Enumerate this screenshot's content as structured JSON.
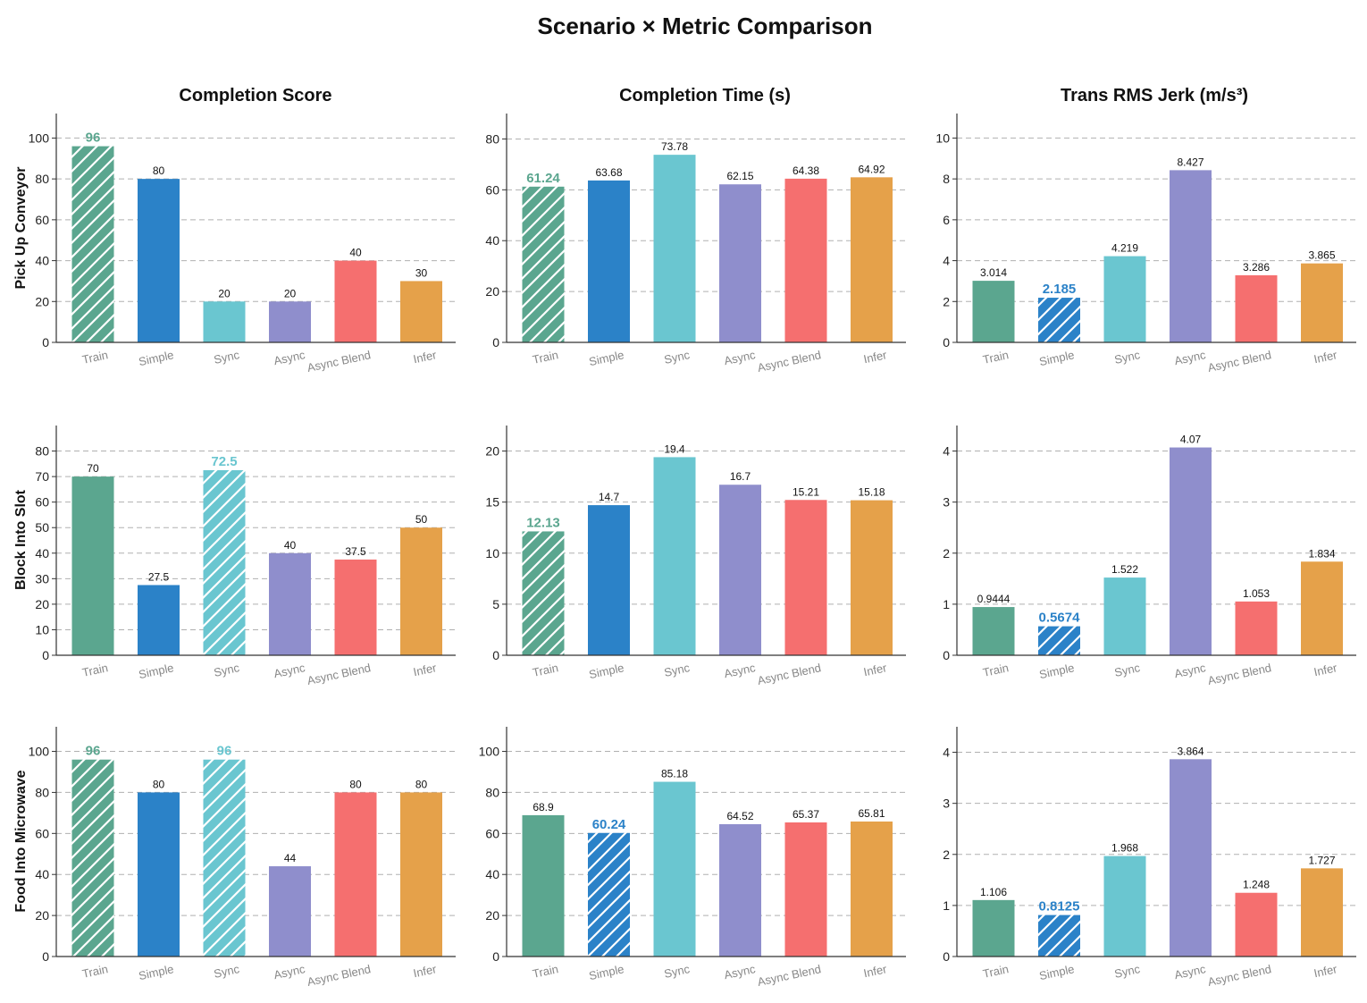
{
  "title": "Scenario × Metric Comparison",
  "categories": [
    "Train",
    "Simple",
    "Sync",
    "Async",
    "Async Blend",
    "Infer"
  ],
  "colors": [
    "#5ba68f",
    "#2b82c8",
    "#6ac6d0",
    "#8f8ecc",
    "#f56f6f",
    "#e5a14a"
  ],
  "columns": [
    "Completion Score",
    "Completion Time (s)",
    "Trans RMS Jerk (m/s³)"
  ],
  "rows": [
    "Pick Up Conveyor",
    "Block Into Slot",
    "Food Into Microwave"
  ],
  "chart_data": [
    {
      "type": "bar",
      "scenario": "Pick Up Conveyor",
      "metric": "Completion Score",
      "values": [
        96,
        80,
        20,
        20,
        40,
        30
      ],
      "labels": [
        "96",
        "80",
        "20",
        "20",
        "40",
        "30"
      ],
      "best": [
        0
      ],
      "ylim": [
        0,
        112
      ],
      "yticks": [
        0,
        20,
        40,
        60,
        80,
        100
      ]
    },
    {
      "type": "bar",
      "scenario": "Pick Up Conveyor",
      "metric": "Completion Time (s)",
      "values": [
        61.24,
        63.68,
        73.78,
        62.15,
        64.38,
        64.92
      ],
      "labels": [
        "61.24",
        "63.68",
        "73.78",
        "62.15",
        "64.38",
        "64.92"
      ],
      "best": [
        0
      ],
      "ylim": [
        0,
        90
      ],
      "yticks": [
        0,
        20,
        40,
        60,
        80
      ]
    },
    {
      "type": "bar",
      "scenario": "Pick Up Conveyor",
      "metric": "Trans RMS Jerk (m/s³)",
      "values": [
        3.014,
        2.185,
        4.219,
        8.427,
        3.286,
        3.865
      ],
      "labels": [
        "3.014",
        "2.185",
        "4.219",
        "8.427",
        "3.286",
        "3.865"
      ],
      "best": [
        1
      ],
      "ylim": [
        0,
        11.2
      ],
      "yticks": [
        0,
        2,
        4,
        6,
        8,
        10
      ]
    },
    {
      "type": "bar",
      "scenario": "Block Into Slot",
      "metric": "Completion Score",
      "values": [
        70,
        27.5,
        72.5,
        40,
        37.5,
        50
      ],
      "labels": [
        "70",
        "27.5",
        "72.5",
        "40",
        "37.5",
        "50"
      ],
      "best": [
        2
      ],
      "ylim": [
        0,
        90
      ],
      "yticks": [
        0,
        10,
        20,
        30,
        40,
        50,
        60,
        70,
        80
      ]
    },
    {
      "type": "bar",
      "scenario": "Block Into Slot",
      "metric": "Completion Time (s)",
      "values": [
        12.13,
        14.7,
        19.4,
        16.7,
        15.21,
        15.18
      ],
      "labels": [
        "12.13",
        "14.7",
        "19.4",
        "16.7",
        "15.21",
        "15.18"
      ],
      "best": [
        0
      ],
      "ylim": [
        0,
        22.5
      ],
      "yticks": [
        0,
        5,
        10,
        15,
        20
      ]
    },
    {
      "type": "bar",
      "scenario": "Block Into Slot",
      "metric": "Trans RMS Jerk (m/s³)",
      "values": [
        0.9444,
        0.5674,
        1.522,
        4.07,
        1.053,
        1.834
      ],
      "labels": [
        "0.9444",
        "0.5674",
        "1.522",
        "4.07",
        "1.053",
        "1.834"
      ],
      "best": [
        1
      ],
      "ylim": [
        0,
        4.5
      ],
      "yticks": [
        0,
        1,
        2,
        3,
        4
      ]
    },
    {
      "type": "bar",
      "scenario": "Food Into Microwave",
      "metric": "Completion Score",
      "values": [
        96,
        80,
        96,
        44,
        80,
        80
      ],
      "labels": [
        "96",
        "80",
        "96",
        "44",
        "80",
        "80"
      ],
      "best": [
        0,
        2
      ],
      "ylim": [
        0,
        112
      ],
      "yticks": [
        0,
        20,
        40,
        60,
        80,
        100
      ]
    },
    {
      "type": "bar",
      "scenario": "Food Into Microwave",
      "metric": "Completion Time (s)",
      "values": [
        68.9,
        60.24,
        85.18,
        64.52,
        65.37,
        65.81
      ],
      "labels": [
        "68.9",
        "60.24",
        "85.18",
        "64.52",
        "65.37",
        "65.81"
      ],
      "best": [
        1
      ],
      "ylim": [
        0,
        112
      ],
      "yticks": [
        0,
        20,
        40,
        60,
        80,
        100
      ]
    },
    {
      "type": "bar",
      "scenario": "Food Into Microwave",
      "metric": "Trans RMS Jerk (m/s³)",
      "values": [
        1.106,
        0.8125,
        1.968,
        3.864,
        1.248,
        1.727
      ],
      "labels": [
        "1.106",
        "0.8125",
        "1.968",
        "3.864",
        "1.248",
        "1.727"
      ],
      "best": [
        1
      ],
      "ylim": [
        0,
        4.5
      ],
      "yticks": [
        0,
        1,
        2,
        3,
        4
      ]
    }
  ]
}
